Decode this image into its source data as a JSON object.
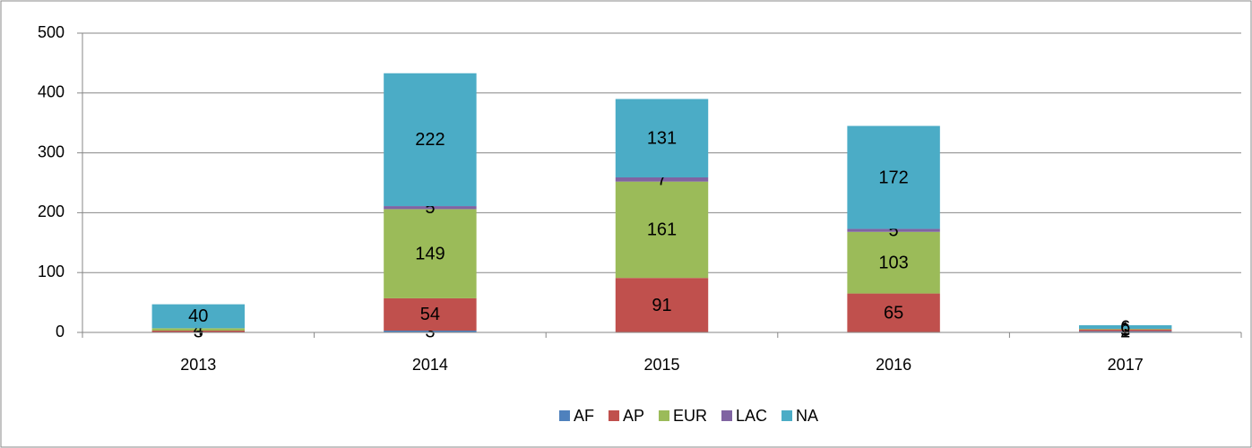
{
  "chart_data": {
    "type": "stacked_bar",
    "categories": [
      "2013",
      "2014",
      "2015",
      "2016",
      "2017"
    ],
    "series": [
      {
        "name": "AF",
        "color": "#4f81bd",
        "values": [
          null,
          3,
          null,
          null,
          2
        ]
      },
      {
        "name": "AP",
        "color": "#c0504d",
        "values": [
          3,
          54,
          91,
          65,
          3
        ]
      },
      {
        "name": "EUR",
        "color": "#9bbb59",
        "values": [
          4,
          149,
          161,
          103,
          1
        ]
      },
      {
        "name": "LAC",
        "color": "#8064a2",
        "values": [
          null,
          5,
          7,
          5,
          null
        ]
      },
      {
        "name": "NA",
        "color": "#4bacc6",
        "values": [
          40,
          222,
          131,
          172,
          6
        ]
      }
    ],
    "ylim": [
      0,
      500
    ],
    "yticks": [
      0,
      100,
      200,
      300,
      400,
      500
    ],
    "grid": true,
    "legend": "bottom"
  }
}
